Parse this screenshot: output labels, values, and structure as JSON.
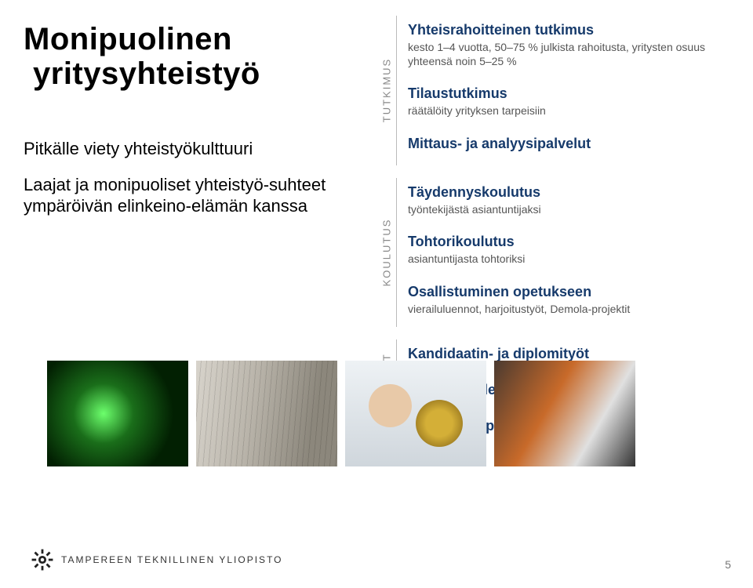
{
  "title": {
    "line1": "Monipuolinen",
    "line2": "yritysyhteistyö"
  },
  "body": {
    "p1": "Pitkälle viety yhteistyökulttuuri",
    "p2": "Laajat ja monipuoliset yhteistyö-suhteet ympäröivän elinkeino-elämän kanssa"
  },
  "sections": [
    {
      "label": "TUTKIMUS",
      "items": [
        {
          "title": "Yhteisrahoitteinen tutkimus",
          "sub": "kesto 1–4 vuotta, 50–75 % julkista rahoitusta, yritysten osuus yhteensä noin 5–25 %"
        },
        {
          "title": "Tilaustutkimus",
          "sub": "räätälöity yrityksen tarpeisiin"
        },
        {
          "title": "Mittaus- ja analyysipalvelut",
          "sub": ""
        }
      ]
    },
    {
      "label": "KOULUTUS",
      "items": [
        {
          "title": "Täydennyskoulutus",
          "sub": "työntekijästä asiantuntijaksi"
        },
        {
          "title": "Tohtorikoulutus",
          "sub": "asiantuntijasta tohtoriksi"
        },
        {
          "title": "Osallistuminen opetukseen",
          "sub": "vierailuluennot, harjoitustyöt, Demola-projektit"
        }
      ]
    },
    {
      "label": "OPISKELIJAT",
      "items": [
        {
          "title": "Kandidaatin- ja diplomityöt",
          "sub": ""
        },
        {
          "title": "Opiskelijoiden rekrytointi",
          "sub": ""
        },
        {
          "title": "Näkyvyys opiskelijoille",
          "sub": ""
        }
      ]
    }
  ],
  "thumbs": [
    {
      "name": "thumb-green",
      "cls": "green"
    },
    {
      "name": "thumb-industrial",
      "cls": "industrial"
    },
    {
      "name": "thumb-person",
      "cls": "person"
    },
    {
      "name": "thumb-robot",
      "cls": "robot"
    }
  ],
  "footer": {
    "org": "TAMPEREEN TEKNILLINEN YLIOPISTO"
  },
  "page": "5",
  "colors": {
    "heading": "#163a6b",
    "subtext": "#555555",
    "vlabel": "#888888"
  }
}
